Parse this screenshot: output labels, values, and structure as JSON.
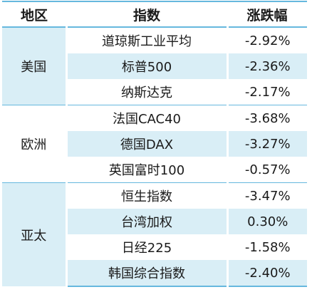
{
  "table": {
    "headers": {
      "region": "地区",
      "index": "指数",
      "change": "涨跌幅"
    },
    "groups": [
      {
        "region": "美国",
        "rows": [
          {
            "name": "道琼斯工业平均",
            "change": "-2.92%"
          },
          {
            "name": "标普500",
            "change": "-2.36%"
          },
          {
            "name": "纳斯达克",
            "change": "-2.17%"
          }
        ]
      },
      {
        "region": "欧洲",
        "rows": [
          {
            "name": "法国CAC40",
            "change": "-3.68%"
          },
          {
            "name": "德国DAX",
            "change": "-3.27%"
          },
          {
            "name": "英国富时100",
            "change": "-0.57%"
          }
        ]
      },
      {
        "region": "亚太",
        "rows": [
          {
            "name": "恒生指数",
            "change": "-3.47%"
          },
          {
            "name": "台湾加权",
            "change": "0.30%"
          },
          {
            "name": "日经225",
            "change": "-1.58%"
          },
          {
            "name": "韩国综合指数",
            "change": "-2.40%"
          }
        ]
      }
    ],
    "colors": {
      "band": "#d9eef6",
      "rule": "#66b8de"
    }
  }
}
